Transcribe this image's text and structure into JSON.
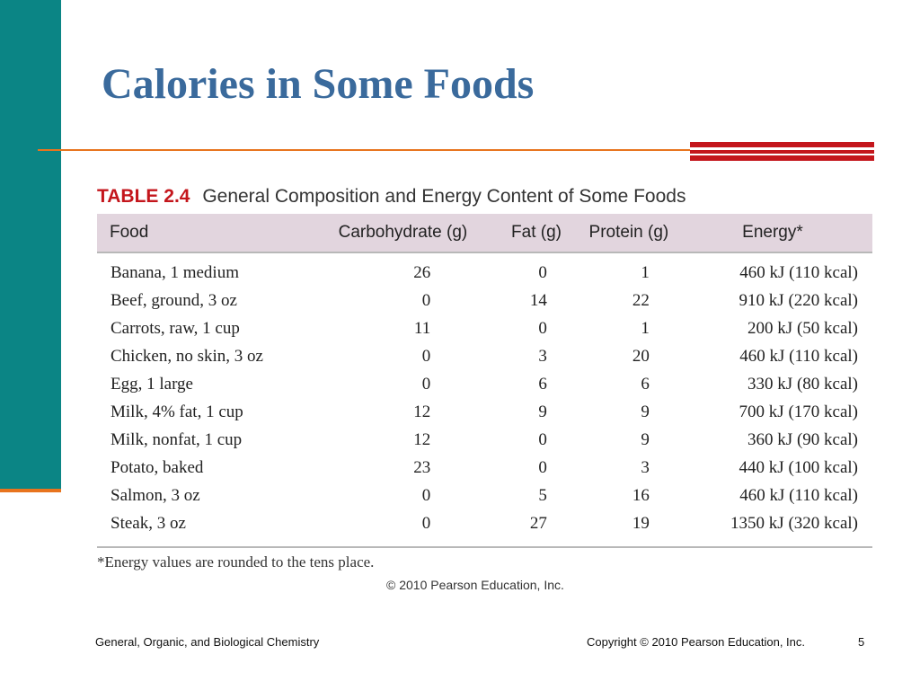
{
  "slide": {
    "title": "Calories in Some Foods"
  },
  "table": {
    "label": "TABLE 2.4",
    "caption": "General Composition and Energy Content of Some Foods",
    "headers": {
      "food": "Food",
      "carbohydrate": "Carbohydrate (g)",
      "fat": "Fat (g)",
      "protein": "Protein (g)",
      "energy": "Energy*"
    },
    "rows": [
      {
        "food": "Banana, 1 medium",
        "carbohydrate": "26",
        "fat": "0",
        "protein": "1",
        "energy": "460 kJ (110 kcal)"
      },
      {
        "food": "Beef, ground, 3 oz",
        "carbohydrate": "0",
        "fat": "14",
        "protein": "22",
        "energy": "910 kJ (220 kcal)"
      },
      {
        "food": "Carrots, raw, 1 cup",
        "carbohydrate": "11",
        "fat": "0",
        "protein": "1",
        "energy": "200 kJ (50 kcal)"
      },
      {
        "food": "Chicken, no skin, 3 oz",
        "carbohydrate": "0",
        "fat": "3",
        "protein": "20",
        "energy": "460 kJ (110 kcal)"
      },
      {
        "food": "Egg, 1 large",
        "carbohydrate": "0",
        "fat": "6",
        "protein": "6",
        "energy": "330 kJ (80 kcal)"
      },
      {
        "food": "Milk, 4% fat, 1 cup",
        "carbohydrate": "12",
        "fat": "9",
        "protein": "9",
        "energy": "700 kJ (170 kcal)"
      },
      {
        "food": "Milk, nonfat, 1 cup",
        "carbohydrate": "12",
        "fat": "0",
        "protein": "9",
        "energy": "360 kJ (90 kcal)"
      },
      {
        "food": "Potato, baked",
        "carbohydrate": "23",
        "fat": "0",
        "protein": "3",
        "energy": "440 kJ (100 kcal)"
      },
      {
        "food": "Salmon, 3 oz",
        "carbohydrate": "0",
        "fat": "5",
        "protein": "16",
        "energy": "460 kJ (110 kcal)"
      },
      {
        "food": "Steak, 3 oz",
        "carbohydrate": "0",
        "fat": "27",
        "protein": "19",
        "energy": "1350 kJ (320 kcal)"
      }
    ],
    "footnote": "*Energy values are rounded to the tens place.",
    "copyright": "© 2010 Pearson Education, Inc."
  },
  "footer": {
    "left": "General, Organic, and Biological Chemistry",
    "right": "Copyright © 2010 Pearson Education, Inc.",
    "page_number": "5"
  },
  "colors": {
    "side_bar": "#0b8585",
    "accent_orange": "#e8741e",
    "accent_red": "#c4161c",
    "title_blue": "#3a6a9c",
    "header_band": "#e2d5de"
  }
}
